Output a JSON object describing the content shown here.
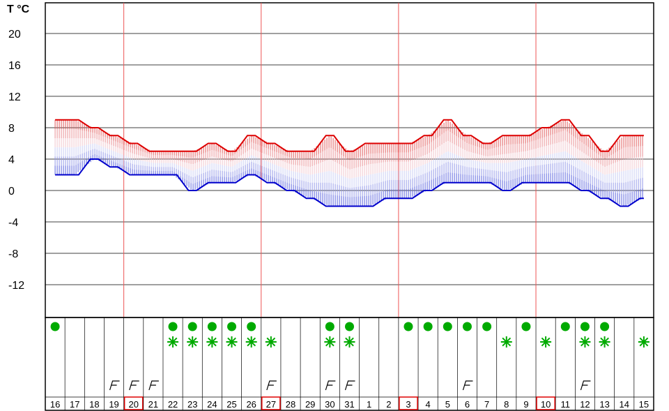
{
  "chart_data": {
    "type": "area",
    "ylabel": "T °C",
    "ylim": [
      -16,
      22
    ],
    "yticks": [
      20,
      16,
      12,
      8,
      4,
      0,
      -4,
      -8,
      -12
    ],
    "days": [
      "16",
      "17",
      "18",
      "19",
      "20",
      "21",
      "22",
      "23",
      "24",
      "25",
      "26",
      "27",
      "28",
      "29",
      "30",
      "31",
      "1",
      "2",
      "3",
      "4",
      "5",
      "6",
      "7",
      "8",
      "9",
      "10",
      "11",
      "12",
      "13",
      "14",
      "15"
    ],
    "boxed_days": [
      4,
      11,
      18,
      25
    ],
    "high": [
      9,
      9,
      8,
      7,
      6,
      5,
      5,
      5,
      6,
      5,
      7,
      6,
      5,
      5,
      7,
      5,
      6,
      6,
      6,
      7,
      9,
      7,
      6,
      7,
      7,
      8,
      9,
      7,
      5,
      7,
      7
    ],
    "low": [
      2,
      2,
      4,
      3,
      2,
      2,
      2,
      0,
      1,
      1,
      2,
      1,
      0,
      -1,
      -2,
      -2,
      -2,
      -1,
      -1,
      0,
      1,
      1,
      1,
      0,
      1,
      1,
      1,
      0,
      -1,
      -2,
      -1
    ],
    "precip_rain": [
      0,
      6,
      7,
      8,
      9,
      10,
      14,
      15,
      18,
      19,
      20,
      21,
      22,
      24,
      26,
      27,
      28
    ],
    "precip_snow": [
      6,
      7,
      8,
      9,
      10,
      11,
      14,
      15,
      23,
      25,
      27,
      28,
      30
    ],
    "wind_flags": [
      3,
      4,
      5,
      11,
      14,
      15,
      21,
      27
    ],
    "colors": {
      "high_line": "#dd0000",
      "low_line": "#0000cc",
      "grid": "#000000",
      "week_line": "#ee5555",
      "boxed": "#dd0000",
      "precip": "#00aa00"
    }
  }
}
